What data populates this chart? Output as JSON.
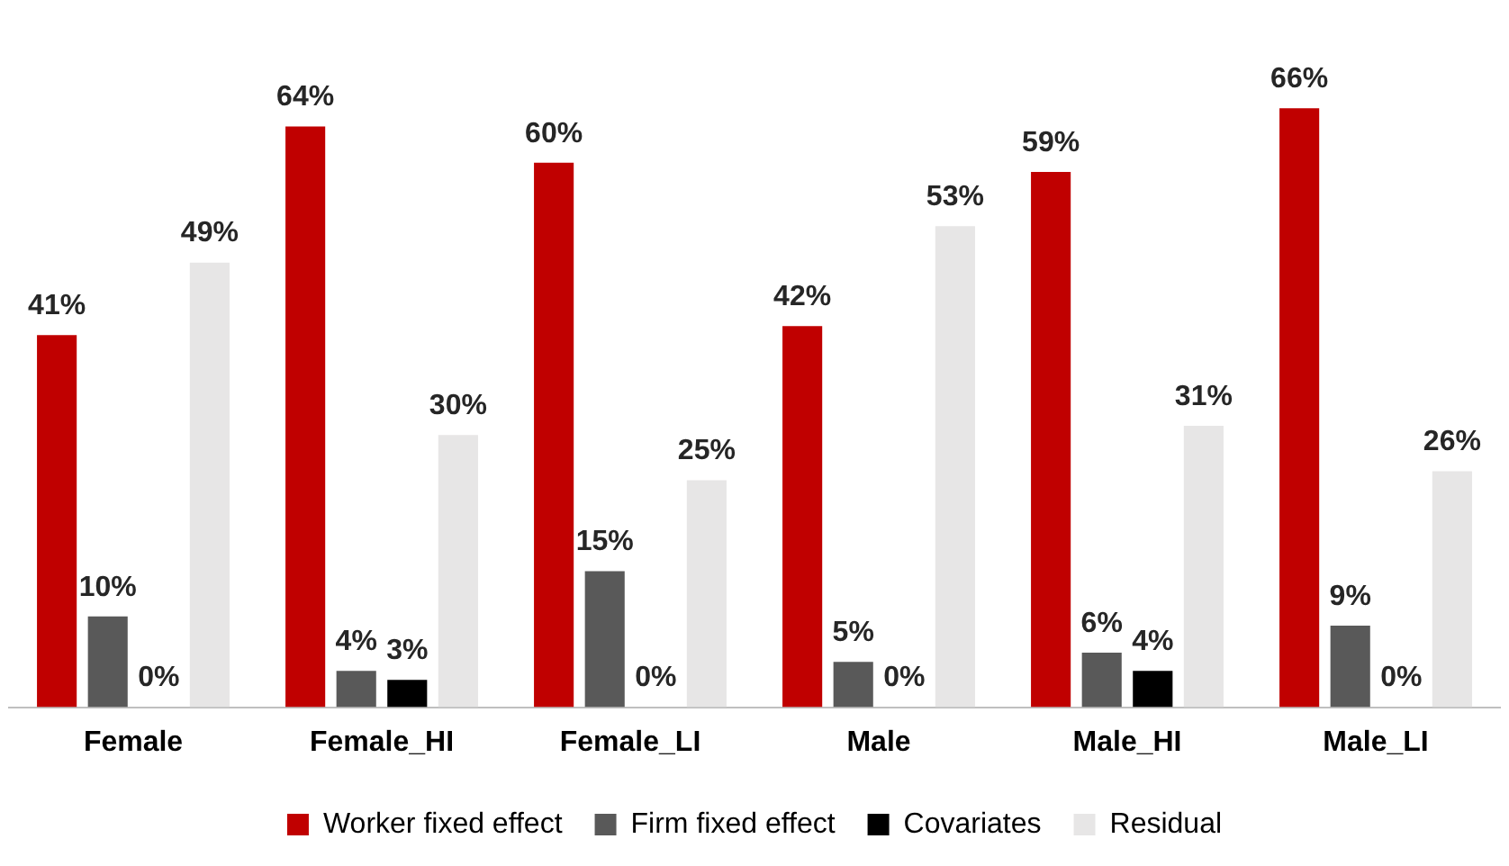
{
  "chart_data": {
    "type": "bar",
    "categories": [
      "Female",
      "Female_HI",
      "Female_LI",
      "Male",
      "Male_HI",
      "Male_LI"
    ],
    "series": [
      {
        "name": "Worker fixed effect",
        "color": "#c00000",
        "values": [
          41,
          64,
          60,
          42,
          59,
          66
        ],
        "value_labels": [
          "41%",
          "64%",
          "60%",
          "42%",
          "59%",
          "66%"
        ]
      },
      {
        "name": "Firm fixed effect",
        "color": "#595959",
        "values": [
          10,
          4,
          15,
          5,
          6,
          9
        ],
        "value_labels": [
          "10%",
          "4%",
          "15%",
          "5%",
          "6%",
          "9%"
        ]
      },
      {
        "name": "Covariates",
        "color": "#000000",
        "values": [
          0,
          3,
          0,
          0,
          4,
          0
        ],
        "value_labels": [
          "0%",
          "3%",
          "0%",
          "0%",
          "4%",
          "0%"
        ]
      },
      {
        "name": "Residual",
        "color": "#e7e6e6",
        "values": [
          49,
          30,
          25,
          53,
          31,
          26
        ],
        "value_labels": [
          "49%",
          "30%",
          "25%",
          "53%",
          "31%",
          "26%"
        ]
      }
    ],
    "legend": "bottom",
    "grid": false
  }
}
